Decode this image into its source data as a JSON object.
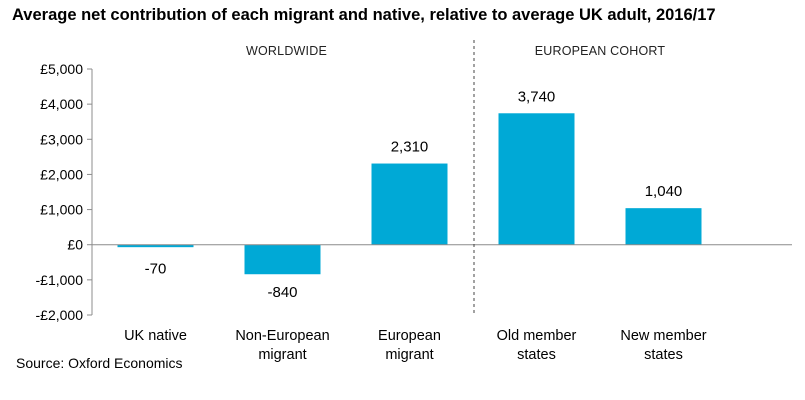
{
  "title": "Average net contribution of each migrant and native, relative to average UK adult, 2016/17",
  "source": "Source: Oxford Economics",
  "colors": {
    "bar": "#00a9d6",
    "axis": "#8c8c8c",
    "divider": "#444444"
  },
  "chart_data": {
    "type": "bar",
    "title": "Average net contribution of each migrant and native, relative to average UK adult, 2016/17",
    "xlabel": "",
    "ylabel": "",
    "ylim": [
      -2000,
      5000
    ],
    "yticks": [
      -2000,
      -1000,
      0,
      1000,
      2000,
      3000,
      4000,
      5000
    ],
    "ytick_labels": [
      "-£2,000",
      "-£1,000",
      "£0",
      "£1,000",
      "£2,000",
      "£3,000",
      "£4,000",
      "£5,000"
    ],
    "categories": [
      [
        "UK native"
      ],
      [
        "Non-European",
        "migrant"
      ],
      [
        "European",
        "migrant"
      ],
      [
        "Old member",
        "states"
      ],
      [
        "New member",
        "states"
      ]
    ],
    "values": [
      -70,
      -840,
      2310,
      3740,
      1040
    ],
    "data_labels": [
      "-70",
      "-840",
      "2,310",
      "3,740",
      "1,040"
    ],
    "groups": [
      {
        "label": "WORLDWIDE",
        "start": 0,
        "end": 2
      },
      {
        "label": "EUROPEAN COHORT",
        "start": 3,
        "end": 4
      }
    ],
    "grid": false,
    "legend": "none"
  }
}
